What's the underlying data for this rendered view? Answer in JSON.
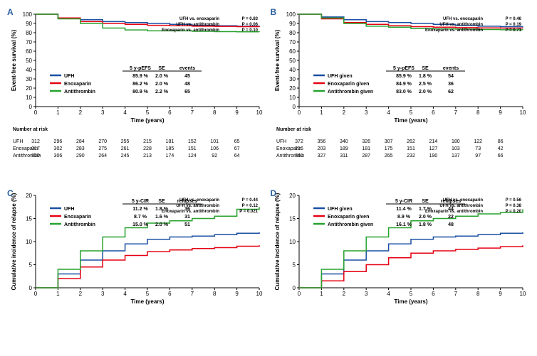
{
  "colors": {
    "ufh": "#1a4fa3",
    "enox": "#e60012",
    "anti": "#27a22d",
    "axis": "#000000",
    "bg": "#ffffff",
    "labelBlue": "#2a5f9e"
  },
  "panels": {
    "A": {
      "label": "A",
      "type": "survival",
      "ylabel": "Event-free survival  (%)",
      "xlabel": "Time (years)",
      "xlim": [
        0,
        10
      ],
      "xtick_step": 1,
      "ylim": [
        0,
        100
      ],
      "ytick_step": 10,
      "series": [
        {
          "key": "ufh",
          "name": "UFH",
          "data": [
            100,
            96,
            94,
            92,
            91,
            90,
            89,
            88,
            87.5,
            87,
            86.5
          ]
        },
        {
          "key": "enox",
          "name": "Enoxaparin",
          "data": [
            100,
            96,
            92,
            90,
            89,
            88,
            87.5,
            87,
            86.8,
            86.5,
            86.2
          ]
        },
        {
          "key": "anti",
          "name": "Antithrombin",
          "data": [
            100,
            95,
            90,
            85,
            83,
            82,
            82,
            81.5,
            81.2,
            81,
            80.9
          ]
        }
      ],
      "pvals": [
        {
          "comp": "UFH vs. enoxaparin",
          "p": "P = 0.83"
        },
        {
          "comp": "UFH vs. antithrombin",
          "p": "P = 0.06"
        },
        {
          "comp": "Enoxaparin vs. antithrombin",
          "p": "P = 0.10"
        }
      ],
      "stats": {
        "header": [
          "5 y-pEFS",
          "SE",
          "events"
        ],
        "rows": [
          {
            "color": "ufh",
            "name": "UFH",
            "v1": "85.9 %",
            "v2": "2.0 %",
            "v3": "45"
          },
          {
            "color": "enox",
            "name": "Enoxaparin",
            "v1": "86.2 %",
            "v2": "2.0 %",
            "v3": "48"
          },
          {
            "color": "anti",
            "name": "Antithrombin",
            "v1": "80.9 %",
            "v2": "2.2 %",
            "v3": "65"
          }
        ]
      },
      "risk": {
        "title": "Number at risk",
        "rows": [
          {
            "name": "UFH",
            "vals": [
              312,
              296,
              284,
              270,
              255,
              215,
              181,
              152,
              101,
              65
            ]
          },
          {
            "name": "Enoxaparin",
            "vals": [
              317,
              302,
              283,
              275,
              261,
              228,
              185,
              151,
              106,
              67
            ]
          },
          {
            "name": "Antithrombin",
            "vals": [
              320,
              306,
              290,
              264,
              245,
              213,
              174,
              124,
              92,
              64
            ]
          }
        ]
      }
    },
    "B": {
      "label": "B",
      "type": "survival",
      "ylabel": "Event-free survival  (%)",
      "xlabel": "Time (years)",
      "xlim": [
        0,
        10
      ],
      "xtick_step": 1,
      "ylim": [
        0,
        100
      ],
      "ytick_step": 10,
      "series": [
        {
          "key": "ufh",
          "name": "UFH given",
          "data": [
            100,
            97,
            94,
            92,
            91,
            90,
            89,
            88,
            87,
            86.5,
            85.9
          ]
        },
        {
          "key": "enox",
          "name": "Enoxaparin given",
          "data": [
            100,
            95,
            91,
            89,
            87.5,
            86.5,
            86,
            85.5,
            85.2,
            85,
            84.9
          ]
        },
        {
          "key": "anti",
          "name": "Antithrombin given",
          "data": [
            100,
            96,
            90,
            87,
            86,
            84.5,
            84,
            83.8,
            83.5,
            83.2,
            83
          ]
        }
      ],
      "pvals": [
        {
          "comp": "UFH vs. enoxaparin",
          "p": "P = 0.46"
        },
        {
          "comp": "UFH vs. antithrombin",
          "p": "P = 0.19"
        },
        {
          "comp": "Enoxaparin vs. antithrombin",
          "p": "P = 0.71"
        }
      ],
      "stats": {
        "header": [
          "5 y-pEFS",
          "SE",
          "events"
        ],
        "rows": [
          {
            "color": "ufh",
            "name": "UFH given",
            "v1": "85.9 %",
            "v2": "1.8 %",
            "v3": "54"
          },
          {
            "color": "enox",
            "name": "Enoxaparin given",
            "v1": "84.9 %",
            "v2": "2.5 %",
            "v3": "36"
          },
          {
            "color": "anti",
            "name": "Antithrombin given",
            "v1": "83.0 %",
            "v2": "2.0 %",
            "v3": "62"
          }
        ]
      },
      "risk": {
        "title": "Number at risk",
        "rows": [
          {
            "name": "UFH",
            "vals": [
              372,
              356,
              340,
              326,
              307,
              262,
              214,
              180,
              122,
              86
            ]
          },
          {
            "name": "Enoxaparin",
            "vals": [
              216,
              203,
              189,
              181,
              175,
              151,
              127,
              103,
              73,
              42
            ]
          },
          {
            "name": "Antithrombin",
            "vals": [
              341,
              327,
              311,
              287,
              265,
              232,
              190,
              137,
              97,
              66
            ]
          }
        ]
      }
    },
    "C": {
      "label": "C",
      "type": "incidence",
      "ylabel": "Cumulative incidence of relapse (%)",
      "xlabel": "Time (years)",
      "xlim": [
        0,
        10
      ],
      "xtick_step": 1,
      "ylim": [
        0,
        20
      ],
      "ytick_step": 5,
      "series": [
        {
          "key": "ufh",
          "name": "UFH",
          "data": [
            0,
            3,
            6,
            8,
            9.5,
            10.5,
            11,
            11.2,
            11.5,
            11.8,
            12
          ]
        },
        {
          "key": "enox",
          "name": "Enoxaparin",
          "data": [
            0,
            2,
            4.5,
            6,
            7,
            7.8,
            8.2,
            8.5,
            8.7,
            9,
            9.2
          ]
        },
        {
          "key": "anti",
          "name": "Antithrombin",
          "data": [
            0,
            4,
            8,
            11,
            13,
            14,
            14.5,
            15,
            15.5,
            17,
            17.5
          ]
        }
      ],
      "pvals": [
        {
          "comp": "UFH vs. enoxaparin",
          "p": "P = 0.44"
        },
        {
          "comp": "UFH vs. antithrombin",
          "p": "P = 0.12"
        },
        {
          "comp": "Enoxaparin vs. antithrombin",
          "p": "P = 0.021"
        }
      ],
      "stats": {
        "header": [
          "5 y-CIR",
          "SE",
          "relapses"
        ],
        "rows": [
          {
            "color": "ufh",
            "name": "UFH",
            "v1": "11.2 %",
            "v2": "1.8 %",
            "v3": "36"
          },
          {
            "color": "enox",
            "name": "Enoxaparin",
            "v1": "8.7 %",
            "v2": "1.6 %",
            "v3": "31"
          },
          {
            "color": "anti",
            "name": "Antithrombin",
            "v1": "15.0 %",
            "v2": "2.0 %",
            "v3": "51"
          }
        ]
      }
    },
    "D": {
      "label": "D",
      "type": "incidence",
      "ylabel": "Cumulative incidence of relapse (%)",
      "xlabel": "Time (years)",
      "xlim": [
        0,
        10
      ],
      "xtick_step": 1,
      "ylim": [
        0,
        20
      ],
      "ytick_step": 5,
      "series": [
        {
          "key": "ufh",
          "name": "UFH given",
          "data": [
            0,
            3,
            6,
            8,
            9.5,
            10.5,
            11,
            11.2,
            11.5,
            11.8,
            12
          ]
        },
        {
          "key": "enox",
          "name": "Enoxaparin given",
          "data": [
            0,
            1.5,
            3.5,
            5,
            6.5,
            7.5,
            8,
            8.3,
            8.6,
            8.9,
            9.2
          ]
        },
        {
          "key": "anti",
          "name": "Antithrombin given",
          "data": [
            0,
            4,
            8,
            11,
            13,
            14.5,
            15,
            15.5,
            16,
            16.3,
            17
          ]
        }
      ],
      "pvals": [
        {
          "comp": "UFH vs. enoxaparin",
          "p": "P = 0.56"
        },
        {
          "comp": "UFH vs. antithrombin",
          "p": "P = 0.38"
        },
        {
          "comp": "Enoxaparin vs. antithrombin",
          "p": "P = 0.20"
        }
      ],
      "stats": {
        "header": [
          "5 y-CIR",
          "SE",
          "relapses"
        ],
        "rows": [
          {
            "color": "ufh",
            "name": "UFH given",
            "v1": "11.4 %",
            "v2": "1.7 %",
            "v3": "44"
          },
          {
            "color": "enox",
            "name": "Enoxaparin given",
            "v1": "8.9 %",
            "v2": "2.0 %",
            "v3": "22"
          },
          {
            "color": "anti",
            "name": "Antithrombin given",
            "v1": "16.1 %",
            "v2": "1.8 %",
            "v3": "48"
          }
        ]
      }
    }
  }
}
